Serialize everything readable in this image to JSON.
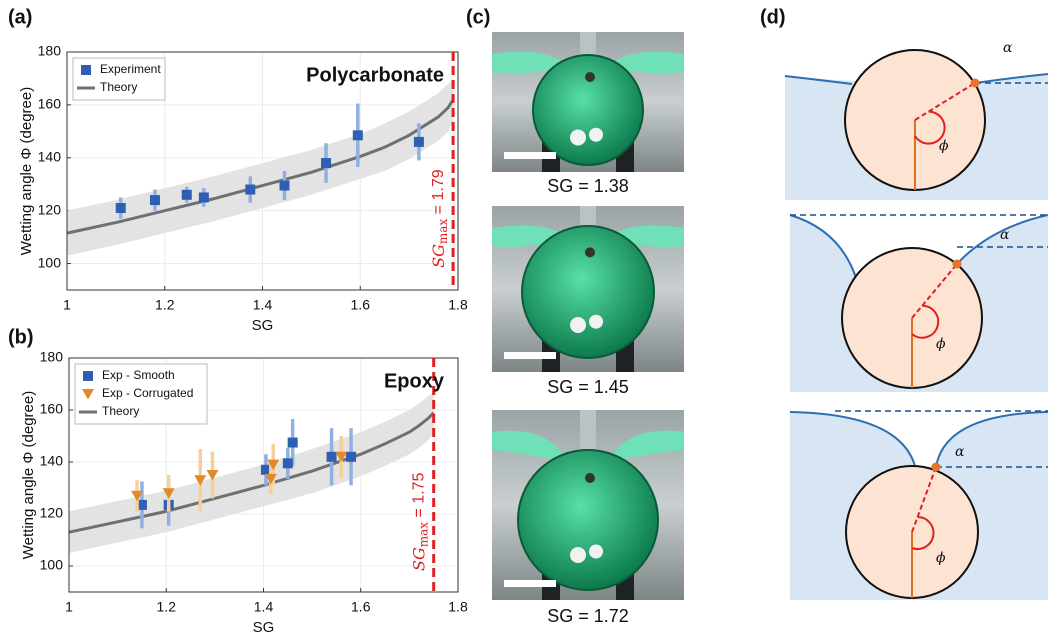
{
  "panel_labels": [
    "(a)",
    "(b)",
    "(c)",
    "(d)"
  ],
  "chart_data": [
    {
      "type": "scatter",
      "xlabel": "SG",
      "ylabel": "Wetting angle Φ (degree)",
      "annotation": "Polycarbonate",
      "xlim": [
        1,
        1.8
      ],
      "xticks": [
        1,
        1.2,
        1.4,
        1.6,
        1.8
      ],
      "ylim": [
        90,
        180
      ],
      "yticks": [
        100,
        120,
        140,
        160,
        180
      ],
      "grid": true,
      "legend": "upper left",
      "sgmax": {
        "x": 1.79,
        "prefix": "SG",
        "sub": "max",
        "suffix": " = 1.79",
        "color": "#e02020"
      },
      "series": [
        {
          "name": "Experiment",
          "mode": "markers",
          "marker": "square",
          "color": "#2f5fb3",
          "error_color": "#8fb0e0",
          "x": [
            1.11,
            1.18,
            1.245,
            1.28,
            1.375,
            1.445,
            1.53,
            1.595,
            1.72
          ],
          "values": [
            121,
            124,
            126,
            125,
            128,
            129.5,
            138,
            148.5,
            146
          ],
          "errors": [
            4,
            4,
            3,
            3.5,
            5,
            5.5,
            7.5,
            12,
            7
          ]
        },
        {
          "name": "Theory",
          "mode": "line",
          "color": "#707070",
          "band_color": "#e3e3e3",
          "x": [
            1,
            1.1,
            1.2,
            1.3,
            1.4,
            1.5,
            1.6,
            1.65,
            1.7,
            1.73,
            1.76,
            1.78,
            1.79
          ],
          "values": [
            111.5,
            115.5,
            120,
            124.5,
            129.5,
            134.5,
            140.5,
            144,
            148.5,
            152,
            155.5,
            159,
            162
          ],
          "band_upper": [
            120,
            124,
            128.5,
            133,
            138,
            143,
            149,
            153,
            157.5,
            161,
            164.5,
            168,
            170
          ],
          "band_lower": [
            103,
            107,
            111.5,
            116,
            121,
            126,
            132,
            135,
            139.5,
            143,
            146.5,
            150,
            154
          ]
        }
      ]
    },
    {
      "type": "scatter",
      "xlabel": "SG",
      "ylabel": "Wetting angle Φ (degree)",
      "annotation": "Epoxy",
      "xlim": [
        1,
        1.8
      ],
      "xticks": [
        1,
        1.2,
        1.4,
        1.6,
        1.8
      ],
      "ylim": [
        90,
        180
      ],
      "yticks": [
        100,
        120,
        140,
        160,
        180
      ],
      "grid": true,
      "legend": "upper left",
      "sgmax": {
        "x": 1.75,
        "prefix": "SG",
        "sub": "max",
        "suffix": " = 1.75",
        "color": "#e02020"
      },
      "series": [
        {
          "name": "Exp - Smooth",
          "mode": "markers",
          "marker": "square",
          "color": "#2f5fb3",
          "error_color": "#8fb0e0",
          "x": [
            1.15,
            1.205,
            1.405,
            1.45,
            1.46,
            1.54,
            1.58
          ],
          "values": [
            123.5,
            123.5,
            137,
            139.5,
            147.5,
            142,
            142
          ],
          "errors": [
            9,
            8,
            6,
            6,
            9,
            11,
            11
          ]
        },
        {
          "name": "Exp - Corrugated",
          "mode": "markers",
          "marker": "triangle-down",
          "color": "#e08a2c",
          "error_color": "#f6cf99",
          "x": [
            1.14,
            1.205,
            1.27,
            1.295,
            1.415,
            1.42,
            1.56
          ],
          "values": [
            127,
            128,
            133,
            135,
            133.5,
            139,
            142
          ],
          "errors": [
            6,
            7,
            12,
            9,
            6,
            8,
            8
          ]
        },
        {
          "name": "Theory",
          "mode": "line",
          "color": "#707070",
          "band_color": "#e3e3e3",
          "x": [
            1,
            1.1,
            1.2,
            1.3,
            1.4,
            1.5,
            1.6,
            1.65,
            1.7,
            1.72,
            1.74,
            1.75
          ],
          "values": [
            113,
            117,
            121,
            126,
            131,
            136.5,
            143,
            147,
            151.5,
            154,
            157,
            159
          ],
          "band_upper": [
            121,
            125,
            129,
            134,
            139,
            145,
            151.5,
            155.5,
            160,
            162.5,
            165.5,
            167
          ],
          "band_lower": [
            105,
            109,
            113,
            118,
            123,
            128,
            134.5,
            138.5,
            143,
            145.5,
            148.5,
            151
          ]
        }
      ]
    }
  ],
  "photos": [
    {
      "caption": "SG = 1.38"
    },
    {
      "caption": "SG = 1.45"
    },
    {
      "caption": "SG = 1.72"
    }
  ],
  "diagrams": [
    {
      "alpha": "α",
      "phi": "ϕ"
    },
    {
      "alpha": "α",
      "phi": "ϕ"
    },
    {
      "alpha": "α",
      "phi": "ϕ"
    }
  ]
}
